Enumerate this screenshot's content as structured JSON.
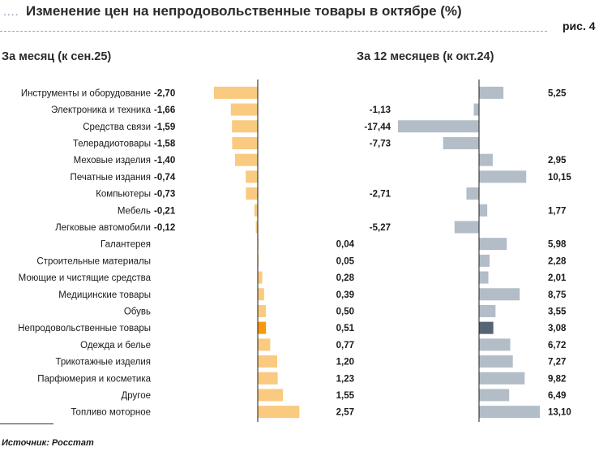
{
  "header": {
    "dots": "....",
    "title": "Изменение цен на непродовольственные товары в октябре (%)",
    "figure_label": "рис. 4"
  },
  "footer": {
    "source": "Источник: Росстат"
  },
  "colors": {
    "month_bar": "#f9ca7f",
    "month_bar_highlight": "#f59a10",
    "year_bar": "#b3bdc7",
    "year_bar_highlight": "#556575",
    "axis": "#1a1a1a"
  },
  "chart_data": {
    "type": "bar",
    "orientation": "horizontal",
    "categories": [
      "Инструменты и оборудование",
      "Электроника и техника",
      "Средства связи",
      "Телерадиотовары",
      "Меховые изделия",
      "Печатные издания",
      "Компьютеры",
      "Мебель",
      "Легковые автомобили",
      "Галантерея",
      "Строительные материалы",
      "Моющие и чистящие средства",
      "Медицинские товары",
      "Обувь",
      "Непродовольственные товары",
      "Одежда и белье",
      "Трикотажные изделия",
      "Парфюмерия и косметика",
      "Другое",
      "Топливо моторное"
    ],
    "highlight_category": "Непродовольственные товары",
    "series": [
      {
        "name": "За месяц (к сен.25)",
        "values": [
          -2.7,
          -1.66,
          -1.59,
          -1.58,
          -1.4,
          -0.74,
          -0.73,
          -0.21,
          -0.12,
          0.04,
          0.05,
          0.28,
          0.39,
          0.5,
          0.51,
          0.77,
          1.2,
          1.23,
          1.55,
          2.57
        ],
        "labels": [
          "-2,70",
          "-1,66",
          "-1,59",
          "-1,58",
          "-1,40",
          "-0,74",
          "-0,73",
          "-0,21",
          "-0,12",
          "0,04",
          "0,05",
          "0,28",
          "0,39",
          "0,50",
          "0,51",
          "0,77",
          "1,20",
          "1,23",
          "1,55",
          "2,57"
        ],
        "xlim": [
          -3.0,
          3.0
        ]
      },
      {
        "name": "За 12 месяцев (к окт.24)",
        "values": [
          5.25,
          -1.13,
          -17.44,
          -7.73,
          2.95,
          10.15,
          -2.71,
          1.77,
          -5.27,
          5.98,
          2.28,
          2.01,
          8.75,
          3.55,
          3.08,
          6.72,
          7.27,
          9.82,
          6.49,
          13.1
        ],
        "labels": [
          "5,25",
          "-1,13",
          "-17,44",
          "-7,73",
          "2,95",
          "10,15",
          "-2,71",
          "1,77",
          "-5,27",
          "5,98",
          "2,28",
          "2,01",
          "8,75",
          "3,55",
          "3,08",
          "6,72",
          "7,27",
          "9,82",
          "6,49",
          "13,10"
        ],
        "xlim": [
          -17.44,
          13.1
        ]
      }
    ]
  }
}
